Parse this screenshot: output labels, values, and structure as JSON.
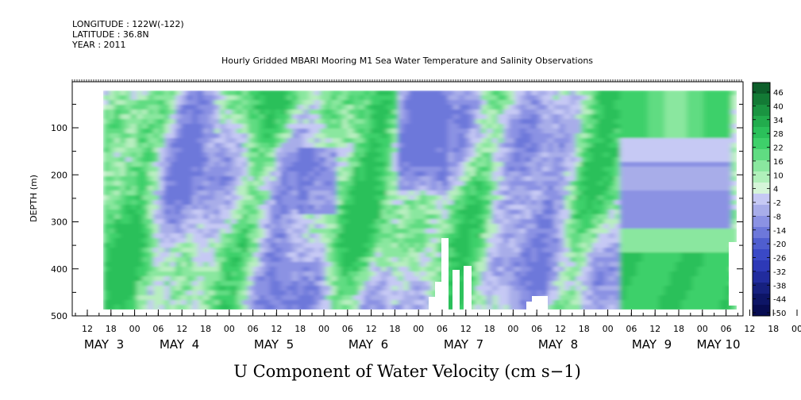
{
  "header": {
    "longitude": "LONGITUDE : 122W(-122)",
    "latitude": "LATITUDE : 36.8N",
    "year": "YEAR : 2011"
  },
  "chart_data": {
    "type": "heatmap",
    "title": "Hourly Gridded MBARI Mooring M1 Sea Water Temperature and Salinity Observations",
    "xlabel": "U Component of Water Velocity (cm s−1)",
    "ylabel": "DEPTH (m)",
    "ylim": [
      500,
      0
    ],
    "y_ticks": [
      100,
      200,
      300,
      400,
      500
    ],
    "x_hour_ticks": [
      "12",
      "18",
      "00",
      "06",
      "12",
      "18",
      "00",
      "06",
      "12",
      "18",
      "00",
      "06",
      "12",
      "18",
      "00",
      "06",
      "12",
      "18",
      "00",
      "06",
      "12",
      "18",
      "00",
      "06",
      "12",
      "18",
      "00",
      "06",
      "12",
      "18",
      "00",
      "06"
    ],
    "x_day_labels": [
      "MAY  3",
      "MAY  4",
      "MAY  5",
      "MAY  6",
      "MAY  7",
      "MAY  8",
      "MAY  9",
      "MAY 10"
    ],
    "colorbar_levels": [
      "46",
      "40",
      "34",
      "28",
      "22",
      "16",
      "10",
      "4",
      "-2",
      "-8",
      "-14",
      "-20",
      "-26",
      "-32",
      "-38",
      "-44",
      "-50"
    ],
    "colorbar_colors": [
      "#0d5e2a",
      "#137a35",
      "#1a9441",
      "#22ac4d",
      "#2bc05a",
      "#3ed06a",
      "#60dc82",
      "#8ae79f",
      "#b0f0ba",
      "#d5f5d8",
      "#c6c9f4",
      "#a8ade9",
      "#8b92e3",
      "#6d78da",
      "#4f5ecf",
      "#3a49c6",
      "#2d39b7",
      "#212c9e",
      "#16207f",
      "#0d1566",
      "#070c52"
    ],
    "value_range": [
      -50,
      52
    ],
    "grid": false,
    "colorbar_placement": "right"
  }
}
